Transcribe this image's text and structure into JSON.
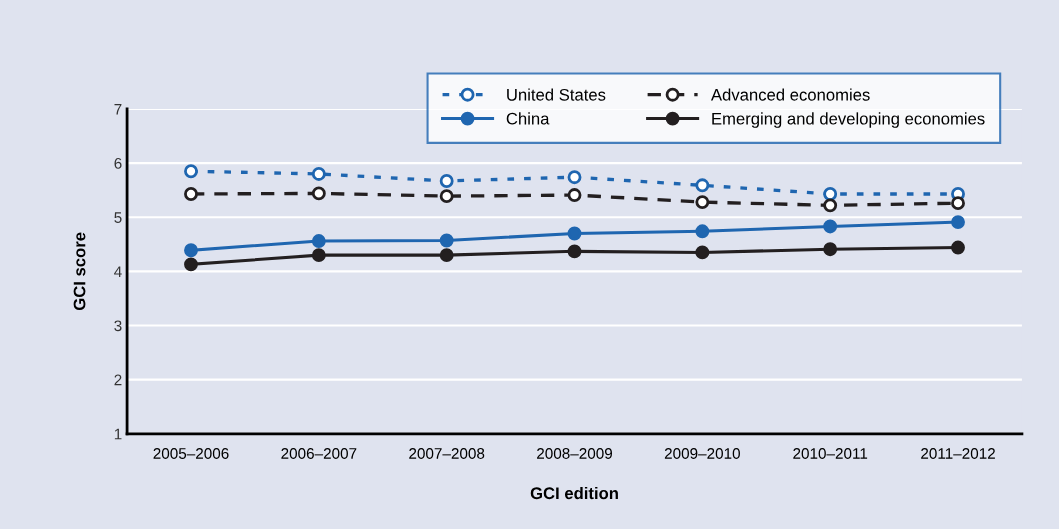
{
  "chart_data": {
    "type": "line",
    "xlabel": "GCI edition",
    "ylabel": "GCI score",
    "categories": [
      "2005–2006",
      "2006–2007",
      "2007–2008",
      "2008–2009",
      "2009–2010",
      "2010–2011",
      "2011–2012"
    ],
    "series": [
      {
        "name": "United States",
        "color": "#1f66b0",
        "values": [
          5.85,
          5.8,
          5.67,
          5.74,
          5.59,
          5.43,
          5.43
        ],
        "line_style": "dotted",
        "marker": "circle"
      },
      {
        "name": "Advanced economies",
        "color": "#231f20",
        "values": [
          5.43,
          5.44,
          5.39,
          5.41,
          5.28,
          5.22,
          5.26
        ],
        "line_style": "dashed",
        "marker": "circle"
      },
      {
        "name": "China",
        "color": "#1f66b0",
        "values": [
          4.39,
          4.56,
          4.57,
          4.7,
          4.74,
          4.83,
          4.91
        ],
        "line_style": "solid",
        "marker": "circle"
      },
      {
        "name": "Emerging and developing economies",
        "color": "#231f20",
        "values": [
          4.13,
          4.3,
          4.3,
          4.37,
          4.35,
          4.41,
          4.44
        ],
        "line_style": "solid",
        "marker": "circle"
      }
    ],
    "ylim": [
      1,
      7
    ],
    "yticks": [
      1,
      2,
      3,
      4,
      5,
      6,
      7
    ],
    "grid": "y",
    "legend": "top right"
  }
}
